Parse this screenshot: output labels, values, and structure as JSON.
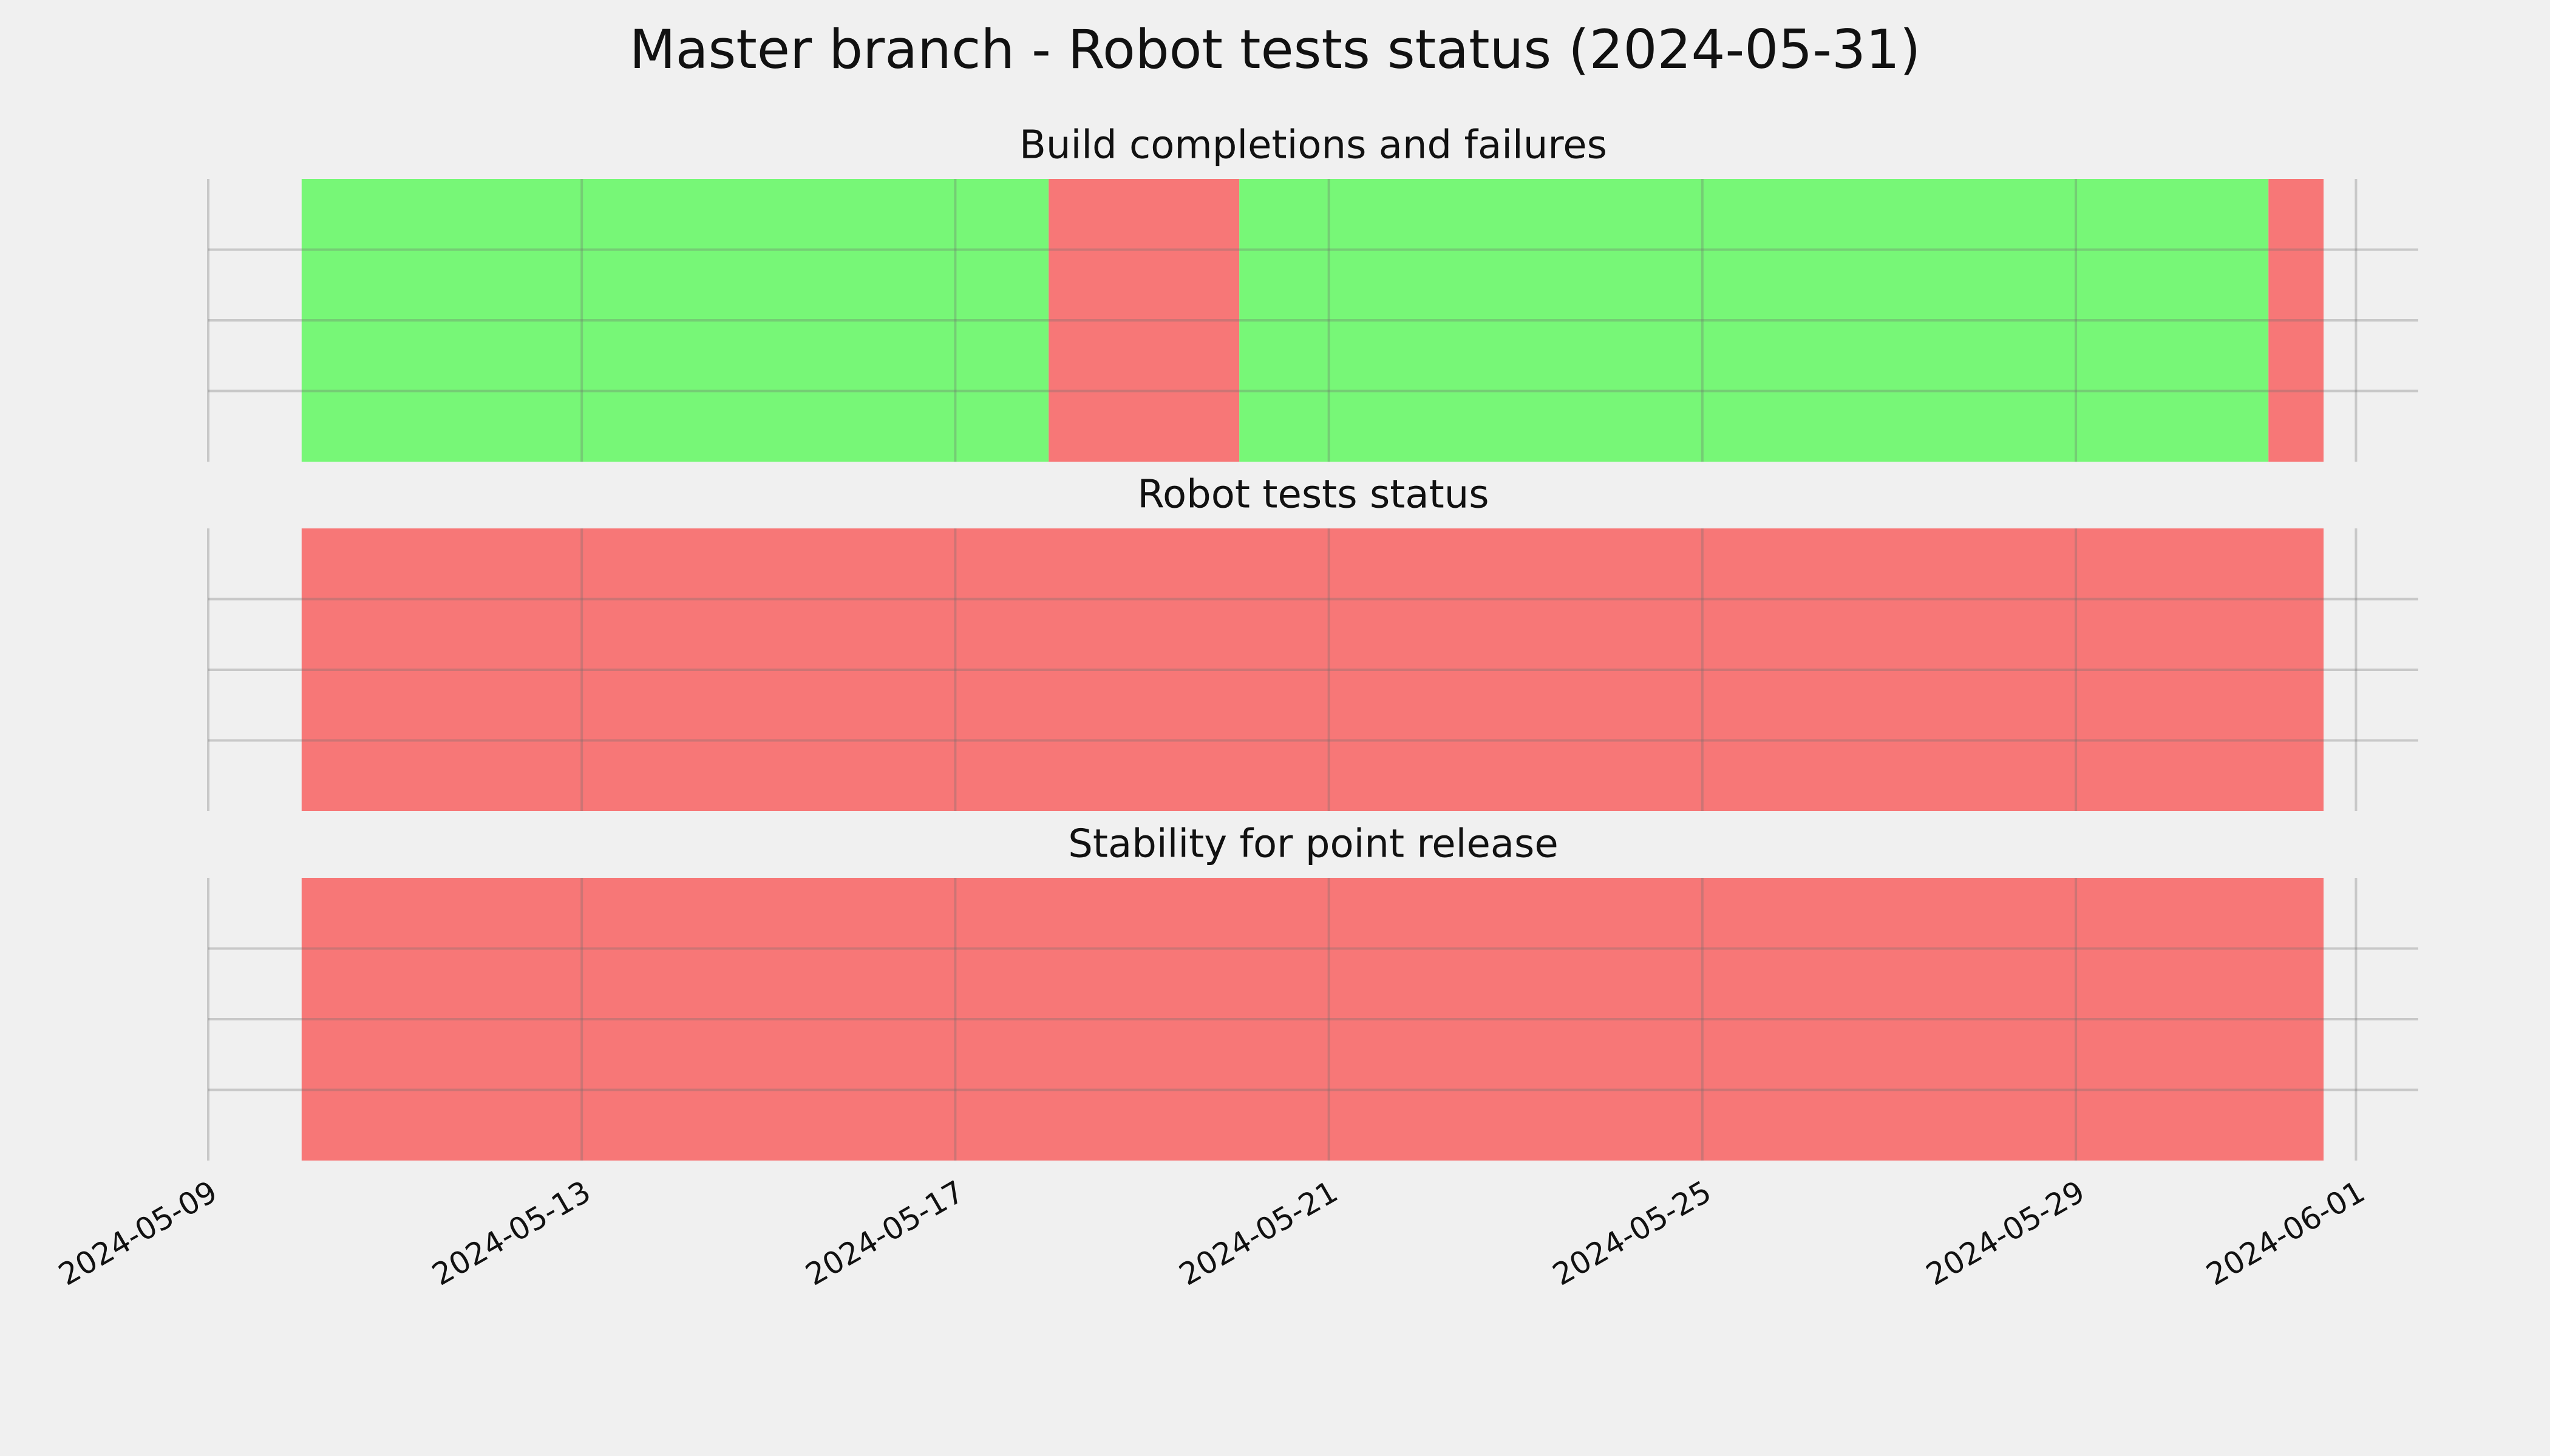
{
  "title": "Master branch - Robot tests status (2024-05-31)",
  "chart_data": [
    {
      "type": "timeline",
      "title": "Build completions and failures",
      "intervals": [
        {
          "start": "2024-05-10T00:00",
          "end": "2024-05-18T00:00",
          "color": "#77f777"
        },
        {
          "start": "2024-05-18T00:00",
          "end": "2024-05-20T01:00",
          "color": "#f77777"
        },
        {
          "start": "2024-05-20T01:00",
          "end": "2024-05-31T01:30",
          "color": "#77f777"
        },
        {
          "start": "2024-05-31T01:30",
          "end": "2024-05-31T15:40",
          "color": "#f77777"
        }
      ],
      "xlim": [
        "2024-05-09T00:00",
        "2024-06-01T16:00"
      ],
      "xticks": [
        "2024-05-09",
        "2024-05-13",
        "2024-05-17",
        "2024-05-21",
        "2024-05-25",
        "2024-05-29",
        "2024-06-01"
      ],
      "ylim": [
        0,
        1
      ],
      "yticks": [
        0.25,
        0.5,
        0.75
      ],
      "grid": true
    },
    {
      "type": "timeline",
      "title": "Robot tests status",
      "intervals": [
        {
          "start": "2024-05-10T00:00",
          "end": "2024-05-31T15:40",
          "color": "#f77777"
        }
      ],
      "xlim": [
        "2024-05-09T00:00",
        "2024-06-01T16:00"
      ],
      "xticks": [
        "2024-05-09",
        "2024-05-13",
        "2024-05-17",
        "2024-05-21",
        "2024-05-25",
        "2024-05-29",
        "2024-06-01"
      ],
      "ylim": [
        0,
        1
      ],
      "yticks": [
        0.25,
        0.5,
        0.75
      ],
      "grid": true
    },
    {
      "type": "timeline",
      "title": "Stability for point release",
      "intervals": [
        {
          "start": "2024-05-10T00:00",
          "end": "2024-05-31T15:40",
          "color": "#f77777"
        }
      ],
      "xlim": [
        "2024-05-09T00:00",
        "2024-06-01T16:00"
      ],
      "xticks": [
        "2024-05-09",
        "2024-05-13",
        "2024-05-17",
        "2024-05-21",
        "2024-05-25",
        "2024-05-29",
        "2024-06-01"
      ],
      "ylim": [
        0,
        1
      ],
      "yticks": [
        0.25,
        0.5,
        0.75
      ],
      "grid": true
    }
  ]
}
